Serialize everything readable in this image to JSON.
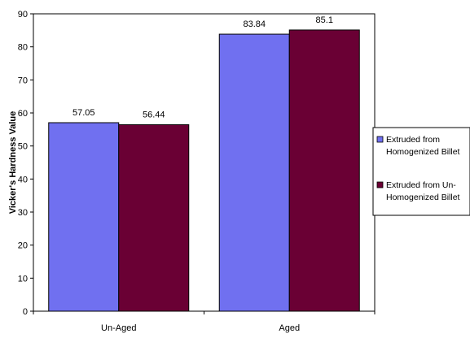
{
  "chart_data": {
    "type": "bar",
    "title": "",
    "xlabel": "",
    "ylabel": "Vicker's Hardness Value",
    "categories": [
      "Un-Aged",
      "Aged"
    ],
    "series": [
      {
        "name": "Extruded from Homogenized Billet",
        "values": [
          57.05,
          83.84
        ],
        "color": "#7070f0"
      },
      {
        "name": "Extruded from Un-Homogenized Billet",
        "values": [
          56.44,
          85.1
        ],
        "color": "#6a0034"
      }
    ],
    "data_labels": [
      [
        "57.05",
        "83.84"
      ],
      [
        "56.44",
        "85.1"
      ]
    ],
    "ylim": [
      0,
      90
    ],
    "yticks": [
      0,
      10,
      20,
      30,
      40,
      50,
      60,
      70,
      80,
      90
    ],
    "grid": false,
    "legend_position": "right",
    "legend_lines": [
      [
        "Extruded from",
        "Homogenized Billet"
      ],
      [
        "Extruded from Un-",
        "Homogenized Billet"
      ]
    ]
  }
}
